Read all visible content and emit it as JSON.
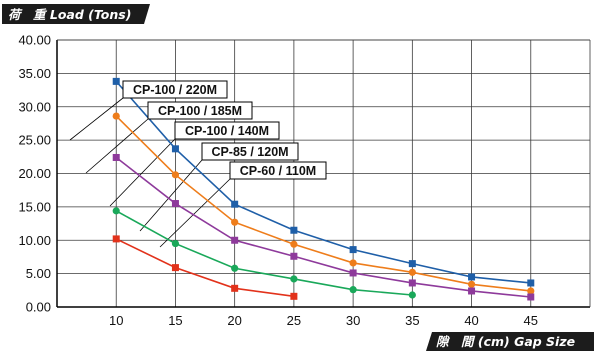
{
  "chart_data": {
    "type": "line",
    "ylabel": "荷　重 Load (Tons)",
    "xlabel": "隙　間 (cm) Gap Size",
    "x": [
      10,
      15,
      20,
      25,
      30,
      35,
      40,
      45
    ],
    "xlim": [
      5,
      50
    ],
    "ylim": [
      0,
      40
    ],
    "y_ticks": [
      "0.00",
      "5.00",
      "10.00",
      "15.00",
      "20.00",
      "25.00",
      "30.00",
      "35.00",
      "40.00"
    ],
    "x_ticks": [
      "10",
      "15",
      "20",
      "25",
      "30",
      "35",
      "40",
      "45"
    ],
    "grid": true,
    "series": [
      {
        "name": "CP-100 / 220M",
        "color": "#1f5fa8",
        "marker": "square",
        "points": [
          [
            10,
            33.8
          ],
          [
            15,
            23.7
          ],
          [
            20,
            15.4
          ],
          [
            25,
            11.5
          ],
          [
            30,
            8.6
          ],
          [
            35,
            6.5
          ],
          [
            40,
            4.5
          ],
          [
            45,
            3.6
          ]
        ]
      },
      {
        "name": "CP-100 / 185M",
        "color": "#ee7d1b",
        "marker": "circle",
        "points": [
          [
            10,
            28.6
          ],
          [
            15,
            19.8
          ],
          [
            20,
            12.7
          ],
          [
            25,
            9.4
          ],
          [
            30,
            6.6
          ],
          [
            35,
            5.2
          ],
          [
            40,
            3.4
          ],
          [
            45,
            2.4
          ]
        ]
      },
      {
        "name": "CP-100 / 140M",
        "color": "#8e3a9b",
        "marker": "square",
        "points": [
          [
            10,
            22.4
          ],
          [
            15,
            15.5
          ],
          [
            20,
            10.0
          ],
          [
            25,
            7.6
          ],
          [
            30,
            5.1
          ],
          [
            35,
            3.6
          ],
          [
            40,
            2.4
          ],
          [
            45,
            1.5
          ]
        ]
      },
      {
        "name": "CP-85 / 120M",
        "color": "#1aa85a",
        "marker": "circle",
        "points": [
          [
            10,
            14.4
          ],
          [
            15,
            9.5
          ],
          [
            20,
            5.8
          ],
          [
            25,
            4.2
          ],
          [
            30,
            2.6
          ],
          [
            35,
            1.8
          ]
        ]
      },
      {
        "name": "CP-60 / 110M",
        "color": "#e2321b",
        "marker": "square",
        "points": [
          [
            10,
            10.2
          ],
          [
            15,
            5.9
          ],
          [
            20,
            2.8
          ],
          [
            25,
            1.6
          ]
        ]
      }
    ]
  }
}
